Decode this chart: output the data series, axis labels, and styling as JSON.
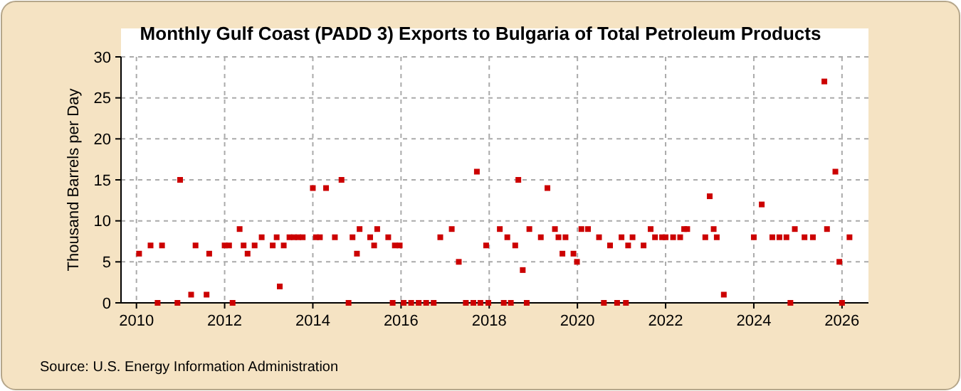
{
  "chart_data": {
    "type": "scatter",
    "title": "Monthly Gulf Coast (PADD 3) Exports to Bulgaria of Total Petroleum Products",
    "ylabel": "Thousand Barrels per Day",
    "annotations": [
      "Source: U.S. Energy Information Administration"
    ],
    "xlim": [
      2009.65,
      2026.6
    ],
    "xticks": [
      2010,
      2012,
      2014,
      2016,
      2018,
      2020,
      2022,
      2024,
      2026
    ],
    "ylim": [
      0,
      30
    ],
    "yticks": [
      0,
      5,
      10,
      15,
      20,
      25,
      30
    ],
    "grid": true,
    "marker": "square",
    "series": [
      {
        "color": "#cc0000",
        "x": [
          2010.06,
          2010.32,
          2010.48,
          2010.58,
          2010.93,
          2010.99,
          2011.24,
          2011.34,
          2011.59,
          2011.65,
          2012.0,
          2012.1,
          2012.18,
          2012.34,
          2012.43,
          2012.52,
          2012.68,
          2012.84,
          2013.09,
          2013.18,
          2013.25,
          2013.34,
          2013.47,
          2013.57,
          2013.67,
          2013.77,
          2014.0,
          2014.07,
          2014.16,
          2014.3,
          2014.5,
          2014.65,
          2014.81,
          2014.9,
          2015.0,
          2015.06,
          2015.3,
          2015.39,
          2015.46,
          2015.71,
          2015.81,
          2015.86,
          2015.97,
          2016.06,
          2016.23,
          2016.4,
          2016.57,
          2016.74,
          2016.89,
          2017.15,
          2017.31,
          2017.47,
          2017.64,
          2017.8,
          2017.98,
          2017.72,
          2017.93,
          2018.24,
          2018.33,
          2018.41,
          2018.49,
          2018.59,
          2018.66,
          2018.76,
          2018.85,
          2018.91,
          2019.17,
          2019.32,
          2019.49,
          2019.57,
          2019.66,
          2019.73,
          2019.91,
          2019.99,
          2020.09,
          2020.24,
          2020.49,
          2020.6,
          2020.74,
          2020.9,
          2021.0,
          2021.1,
          2021.15,
          2021.25,
          2021.5,
          2021.66,
          2021.76,
          2021.92,
          2022.0,
          2022.17,
          2022.33,
          2022.42,
          2022.49,
          2022.9,
          2023.0,
          2023.09,
          2023.16,
          2023.32,
          2024.0,
          2024.18,
          2024.42,
          2024.58,
          2024.74,
          2024.83,
          2024.93,
          2025.15,
          2025.34,
          2025.6,
          2025.66,
          2025.85,
          2025.94,
          2026.0,
          2026.17
        ],
        "values": [
          6,
          7,
          0,
          7,
          0,
          15,
          1,
          7,
          1,
          6,
          7,
          7,
          0,
          9,
          7,
          6,
          7,
          8,
          7,
          8,
          2,
          7,
          8,
          8,
          8,
          8,
          14,
          8,
          8,
          14,
          8,
          15,
          0,
          8,
          6,
          9,
          8,
          7,
          9,
          8,
          0,
          7,
          7,
          0,
          0,
          0,
          0,
          0,
          8,
          9,
          5,
          0,
          0,
          0,
          0,
          16,
          7,
          9,
          0,
          8,
          0,
          7,
          15,
          4,
          0,
          9,
          8,
          14,
          9,
          8,
          6,
          8,
          6,
          5,
          9,
          9,
          8,
          0,
          7,
          0,
          8,
          0,
          7,
          8,
          7,
          9,
          8,
          8,
          8,
          8,
          8,
          9,
          9,
          8,
          13,
          9,
          8,
          1,
          8,
          12,
          8,
          8,
          8,
          0,
          9,
          8,
          8,
          27,
          9,
          16,
          5,
          0,
          8
        ]
      }
    ]
  }
}
